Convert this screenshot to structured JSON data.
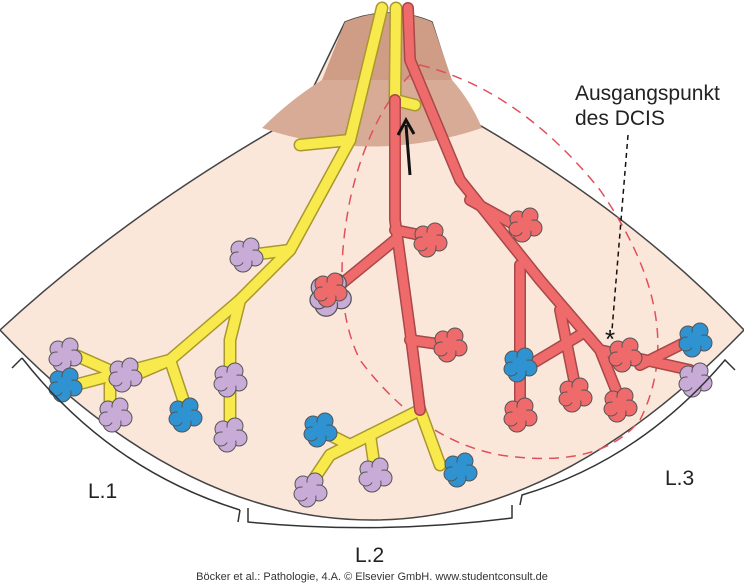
{
  "annotation": {
    "lines": [
      "Ausgangspunkt",
      "des DCIS"
    ]
  },
  "lobes": [
    "L.1",
    "L.2",
    "L.3"
  ],
  "credit": "Böcker et al.: Pathologie, 4.A. © Elsevier GmbH. www.studentconsult.de"
}
